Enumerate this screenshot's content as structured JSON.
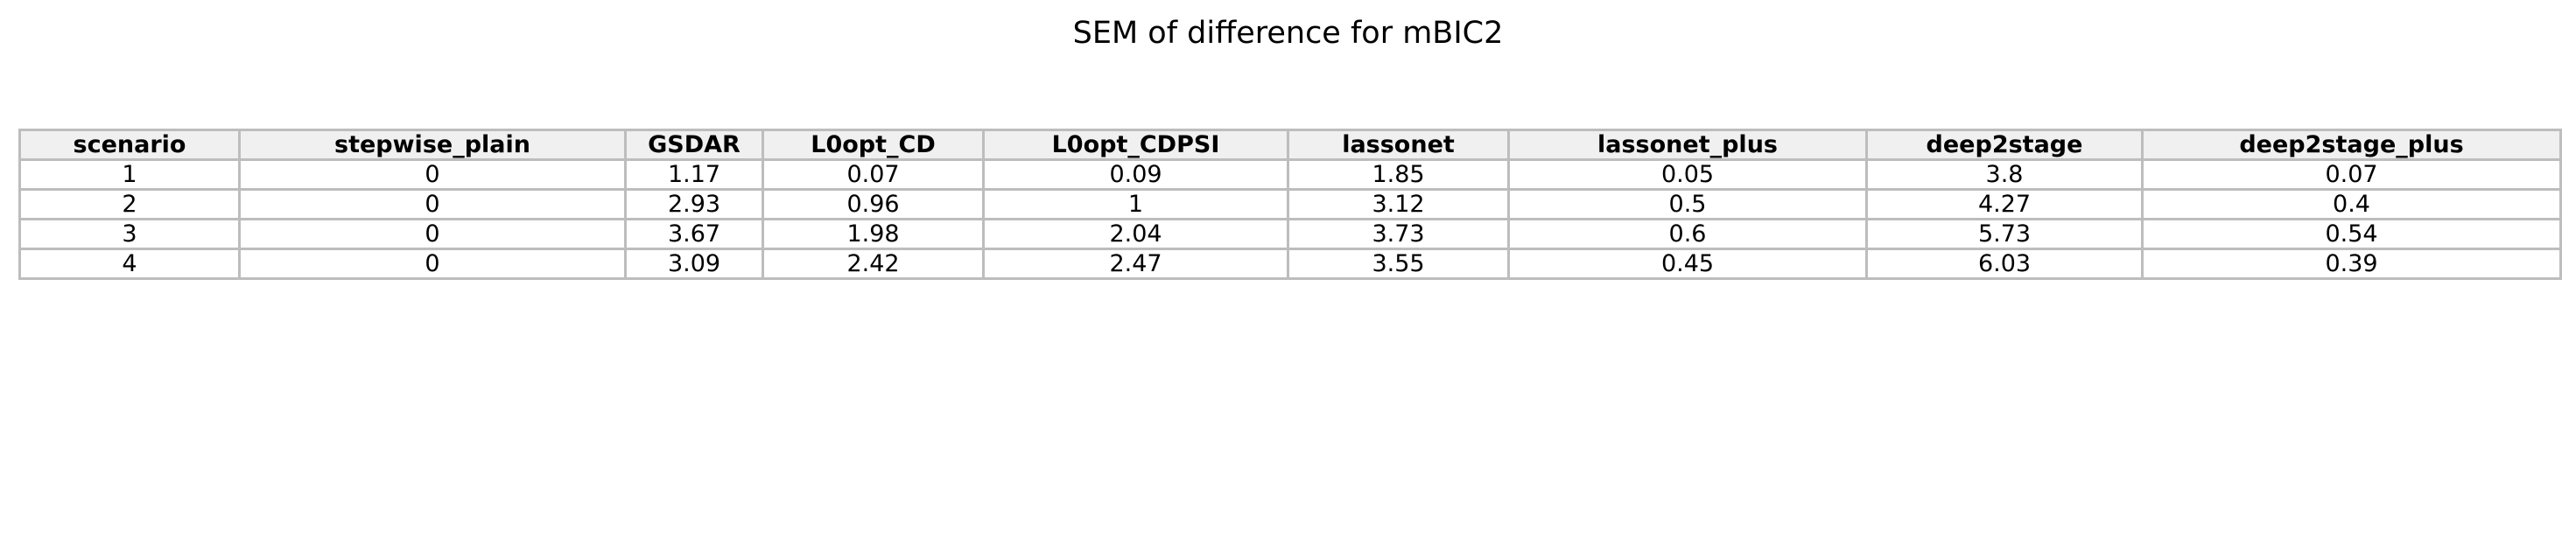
{
  "chart_data": {
    "type": "table",
    "title": "SEM of difference for mBIC2",
    "columns": [
      "scenario",
      "stepwise_plain",
      "GSDAR",
      "L0opt_CD",
      "L0opt_CDPSI",
      "lassonet",
      "lassonet_plus",
      "deep2stage",
      "deep2stage_plus"
    ],
    "rows": [
      [
        "1",
        "0",
        "1.17",
        "0.07",
        "0.09",
        "1.85",
        "0.05",
        "3.8",
        "0.07"
      ],
      [
        "2",
        "0",
        "2.93",
        "0.96",
        "1",
        "3.12",
        "0.5",
        "4.27",
        "0.4"
      ],
      [
        "3",
        "0",
        "3.67",
        "1.98",
        "2.04",
        "3.73",
        "0.6",
        "5.73",
        "0.54"
      ],
      [
        "4",
        "0",
        "3.09",
        "2.42",
        "2.47",
        "3.55",
        "0.45",
        "6.03",
        "0.39"
      ]
    ]
  }
}
